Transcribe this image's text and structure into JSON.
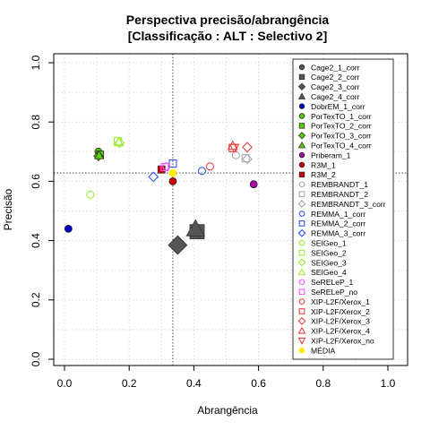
{
  "chart_data": {
    "type": "scatter",
    "title": "Perspectiva precisão/abrangência",
    "subtitle": "[Classificação : ALT : Selectivo 2]",
    "xlabel": "Abrangência",
    "ylabel": "Precisão",
    "xlim": [
      0,
      1
    ],
    "ylim": [
      0,
      1
    ],
    "xticks": [
      "0.0",
      "0.2",
      "0.4",
      "0.6",
      "0.8",
      "1.0"
    ],
    "yticks": [
      "0.0",
      "0.2",
      "0.4",
      "0.6",
      "0.8",
      "1.0"
    ],
    "grid": true,
    "legend_position": "right",
    "reference_lines": {
      "x": 0.335,
      "y": 0.628
    },
    "series": [
      {
        "name": "Cage2_1_corr",
        "marker": "circle",
        "color": "#555555",
        "filled": true,
        "points": []
      },
      {
        "name": "Cage2_2_corr",
        "marker": "square",
        "color": "#555555",
        "filled": true,
        "points": [
          [
            0.41,
            0.43
          ]
        ],
        "large": true
      },
      {
        "name": "Cage2_3_corr",
        "marker": "diamond",
        "color": "#555555",
        "filled": true,
        "points": [
          [
            0.35,
            0.385
          ]
        ],
        "large": true
      },
      {
        "name": "Cage2_4_corr",
        "marker": "triangle",
        "color": "#555555",
        "filled": true,
        "points": [
          [
            0.405,
            0.44
          ]
        ],
        "large": true
      },
      {
        "name": "DobrEM_1_corr",
        "marker": "circle",
        "color": "#0000cc",
        "filled": true,
        "points": [
          [
            0.012,
            0.44
          ]
        ]
      },
      {
        "name": "PorTexTO_1_corr",
        "marker": "circle",
        "color": "#55cc00",
        "filled": true,
        "points": [
          [
            0.105,
            0.7
          ]
        ]
      },
      {
        "name": "PorTexTO_2_corr",
        "marker": "square",
        "color": "#55cc00",
        "filled": true,
        "points": [
          [
            0.11,
            0.69
          ]
        ]
      },
      {
        "name": "PorTexTO_3_corr",
        "marker": "diamond",
        "color": "#55cc00",
        "filled": true,
        "points": [
          [
            0.105,
            0.685
          ]
        ]
      },
      {
        "name": "PorTexTO_4_corr",
        "marker": "triangle",
        "color": "#55cc00",
        "filled": true,
        "points": [
          [
            0.107,
            0.688
          ]
        ]
      },
      {
        "name": "Priberam_1",
        "marker": "circle",
        "color": "#aa00aa",
        "filled": true,
        "points": [
          [
            0.585,
            0.59
          ]
        ]
      },
      {
        "name": "R3M_1",
        "marker": "circle",
        "color": "#cc0000",
        "filled": true,
        "points": [
          [
            0.335,
            0.6
          ]
        ]
      },
      {
        "name": "R3M_2",
        "marker": "square",
        "color": "#cc0000",
        "filled": true,
        "points": [
          [
            0.3,
            0.64
          ]
        ]
      },
      {
        "name": "REMBRANDT_1",
        "marker": "circle",
        "color": "#aaaaaa",
        "filled": false,
        "points": [
          [
            0.53,
            0.688
          ]
        ]
      },
      {
        "name": "REMBRANDT_2",
        "marker": "square",
        "color": "#aaaaaa",
        "filled": false,
        "points": [
          [
            0.56,
            0.678
          ]
        ]
      },
      {
        "name": "REMBRANDT_3_corr",
        "marker": "diamond",
        "color": "#aaaaaa",
        "filled": false,
        "points": [
          [
            0.565,
            0.675
          ]
        ]
      },
      {
        "name": "REMMA_1_corr",
        "marker": "circle",
        "color": "#3355ee",
        "filled": false,
        "points": [
          [
            0.425,
            0.635
          ]
        ]
      },
      {
        "name": "REMMA_2_corr",
        "marker": "square",
        "color": "#3355ee",
        "filled": false,
        "points": [
          [
            0.335,
            0.66
          ]
        ]
      },
      {
        "name": "REMMA_3_corr",
        "marker": "diamond",
        "color": "#3355ee",
        "filled": false,
        "points": [
          [
            0.275,
            0.615
          ]
        ]
      },
      {
        "name": "SEIGeo_1",
        "marker": "circle",
        "color": "#99ee33",
        "filled": false,
        "points": [
          [
            0.08,
            0.555
          ]
        ]
      },
      {
        "name": "SEIGeo_2",
        "marker": "square",
        "color": "#99ee33",
        "filled": false,
        "points": [
          [
            0.165,
            0.735
          ]
        ]
      },
      {
        "name": "SEIGeo_3",
        "marker": "diamond",
        "color": "#99ee33",
        "filled": false,
        "points": [
          [
            0.17,
            0.73
          ]
        ]
      },
      {
        "name": "SEIGeo_4",
        "marker": "triangle",
        "color": "#99ee33",
        "filled": false,
        "points": [
          [
            0.168,
            0.732
          ]
        ]
      },
      {
        "name": "SeRELeP_1",
        "marker": "circle",
        "color": "#ff55ff",
        "filled": false,
        "points": [
          [
            0.315,
            0.65
          ]
        ]
      },
      {
        "name": "SeRELeP_no",
        "marker": "square",
        "color": "#ff55ff",
        "filled": false,
        "points": [
          [
            0.31,
            0.648
          ]
        ]
      },
      {
        "name": "XIP-L2F/Xerox_1",
        "marker": "circle",
        "color": "#ee4444",
        "filled": false,
        "points": [
          [
            0.45,
            0.65
          ]
        ]
      },
      {
        "name": "XIP-L2F/Xerox_2",
        "marker": "square",
        "color": "#ee4444",
        "filled": false,
        "points": [
          [
            0.52,
            0.712
          ]
        ]
      },
      {
        "name": "XIP-L2F/Xerox_3",
        "marker": "diamond",
        "color": "#ee4444",
        "filled": false,
        "points": [
          [
            0.565,
            0.715
          ]
        ]
      },
      {
        "name": "XIP-L2F/Xerox_4",
        "marker": "triangle",
        "color": "#ee4444",
        "filled": false,
        "points": [
          [
            0.52,
            0.72
          ]
        ]
      },
      {
        "name": "XIP-L2F/Xerox_no",
        "marker": "triangle-down",
        "color": "#ee4444",
        "filled": false,
        "points": [
          [
            0.525,
            0.713
          ]
        ]
      },
      {
        "name": "MÉDIA",
        "marker": "circle",
        "color": "#ffee00",
        "filled": true,
        "points": [
          [
            0.335,
            0.628
          ]
        ]
      }
    ]
  }
}
